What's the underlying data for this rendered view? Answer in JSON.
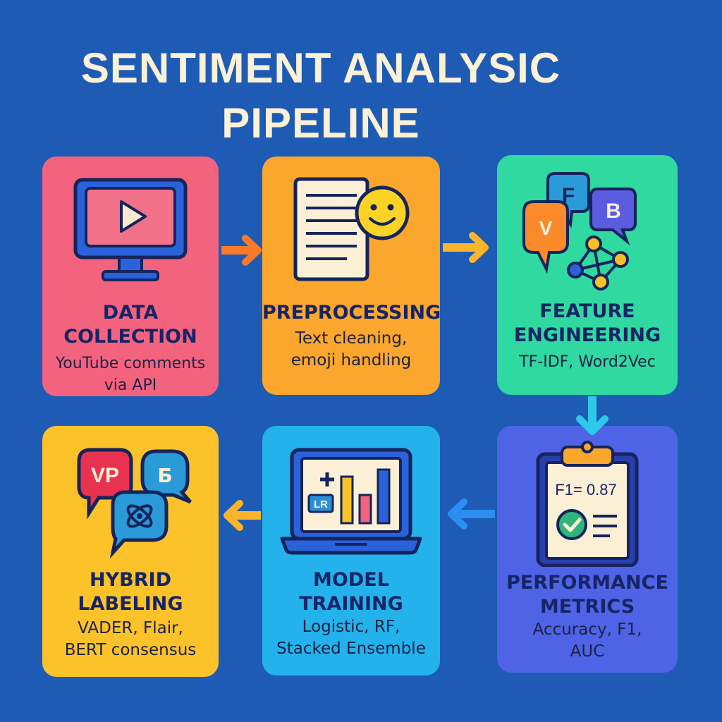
{
  "title": {
    "line1": "SENTIMENT ANALYSIC",
    "line2": "PIPELINE"
  },
  "colors": {
    "background": "#1d5bb5",
    "data_collection": "#f4637e",
    "preprocessing": "#fba62d",
    "feature_engineering": "#2fd9a0",
    "performance_metrics": "#4e63e6",
    "model_training": "#24b2ec",
    "hybrid_labeling": "#fbc22a"
  },
  "steps": {
    "data_collection": {
      "heading_1": "DATA",
      "heading_2": "COLLECTION",
      "desc_1": "YouTube comments",
      "desc_2": "via API",
      "icon": "monitor-play-icon"
    },
    "preprocessing": {
      "heading_1": "PREPROCESSING",
      "desc_1": "Text cleaning,",
      "desc_2": "emoji handling",
      "icon": "document-smiley-icon"
    },
    "feature_engineering": {
      "heading_1": "FEATURE",
      "heading_2": "ENGINEERING",
      "desc_1": "TF-IDF, Word2Vec",
      "icon": "speech-bubbles-network-icon",
      "bubble_v": "V",
      "bubble_f": "F",
      "bubble_b": "B"
    },
    "performance_metrics": {
      "heading_1": "PERFORMANCE",
      "heading_2": "METRICS",
      "desc_1": "Accuracy, F1,",
      "desc_2": "AUC",
      "icon": "clipboard-check-icon",
      "clipboard_text": "F1= 0.87"
    },
    "model_training": {
      "heading_1": "MODEL",
      "heading_2": "TRAINING",
      "desc_1": "Logistic, RF,",
      "desc_2": "Stacked Ensemble",
      "icon": "laptop-chart-icon",
      "chart_label": "LR"
    },
    "hybrid_labeling": {
      "heading_1": "HYBRID",
      "heading_2": "LABELING",
      "desc_1": "VADER, Flair,",
      "desc_2": "BERT consensus",
      "icon": "speech-bubbles-icon",
      "bubble_vp": "VP",
      "bubble_b": "Б"
    }
  }
}
